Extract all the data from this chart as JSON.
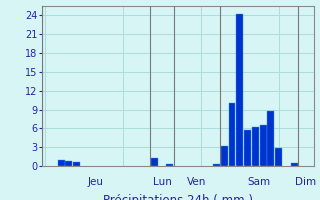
{
  "xlabel": "Précipitations 24h ( mm )",
  "background_color": "#d8f5f5",
  "bar_color": "#0033cc",
  "bar_color_light": "#3399ff",
  "ylim": [
    0,
    25.5
  ],
  "yticks": [
    0,
    3,
    6,
    9,
    12,
    15,
    18,
    21,
    24
  ],
  "day_labels": [
    "Jeu",
    "Lun",
    "Ven",
    "Sam",
    "Dim"
  ],
  "day_positions": [
    0,
    14,
    17,
    23,
    33
  ],
  "num_bars": 35,
  "values": [
    0,
    0,
    1.0,
    0.8,
    0.7,
    0,
    0,
    0,
    0,
    0,
    0,
    0,
    0,
    0,
    1.2,
    0,
    0.3,
    0,
    0,
    0,
    0,
    0,
    0.3,
    3.2,
    10.0,
    24.2,
    5.7,
    6.2,
    6.6,
    8.7,
    2.9,
    0,
    0.4,
    0,
    0
  ],
  "grid_color": "#aadddd",
  "label_color": "#2222aa",
  "xlabel_fontsize": 8.5,
  "tick_fontsize": 7,
  "day_fontsize": 7.5,
  "vline_color": "#777777"
}
